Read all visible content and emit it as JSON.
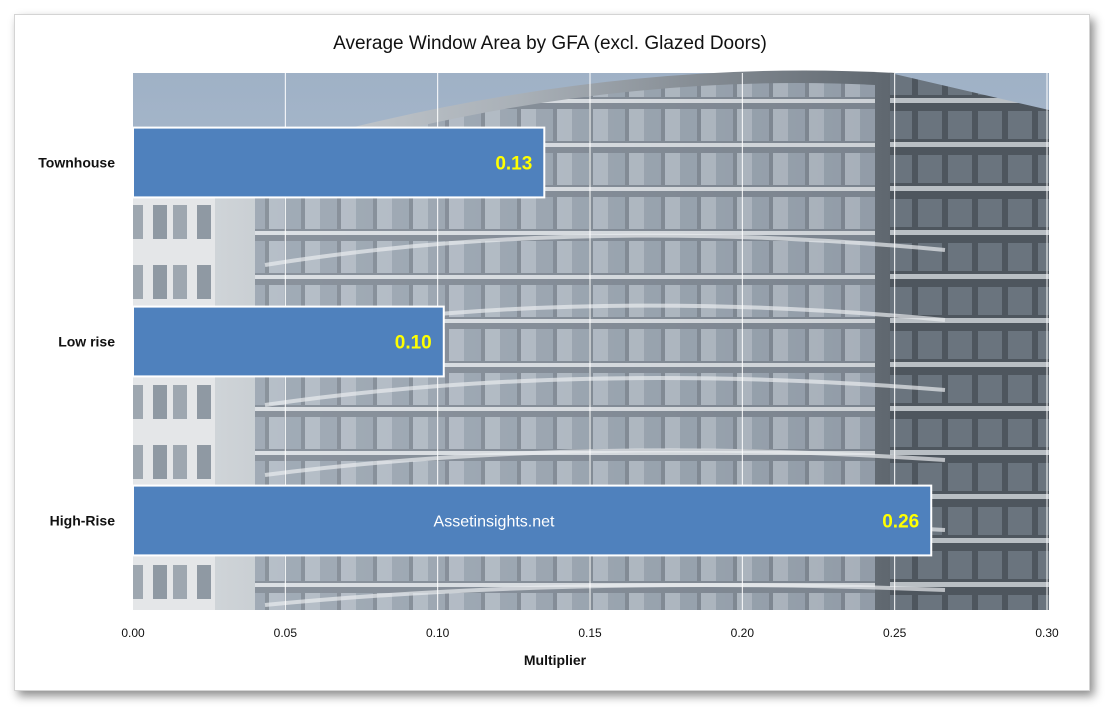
{
  "chart_data": {
    "type": "bar",
    "orientation": "horizontal",
    "title": "Average Window Area by GFA (excl. Glazed Doors)",
    "categories": [
      "Townhouse",
      "Low rise",
      "High-Rise"
    ],
    "values": [
      0.135,
      0.102,
      0.262
    ],
    "data_labels": [
      "0.13",
      "0.10",
      "0.26"
    ],
    "xlabel": "Multiplier",
    "ylabel": "",
    "xlim": [
      0,
      0.3
    ],
    "x_ticks": [
      "0.00",
      "0.05",
      "0.10",
      "0.15",
      "0.20",
      "0.25",
      "0.30"
    ],
    "grid": true,
    "legend": "none",
    "watermark": "Assetinsights.net",
    "colors": {
      "bar": "#4f81bd",
      "bar_border": "#ffffff",
      "data_label": "#ffff00",
      "gridline": "#ffffff",
      "sky": "#b7c5d6",
      "facade": "#8e969f"
    }
  }
}
